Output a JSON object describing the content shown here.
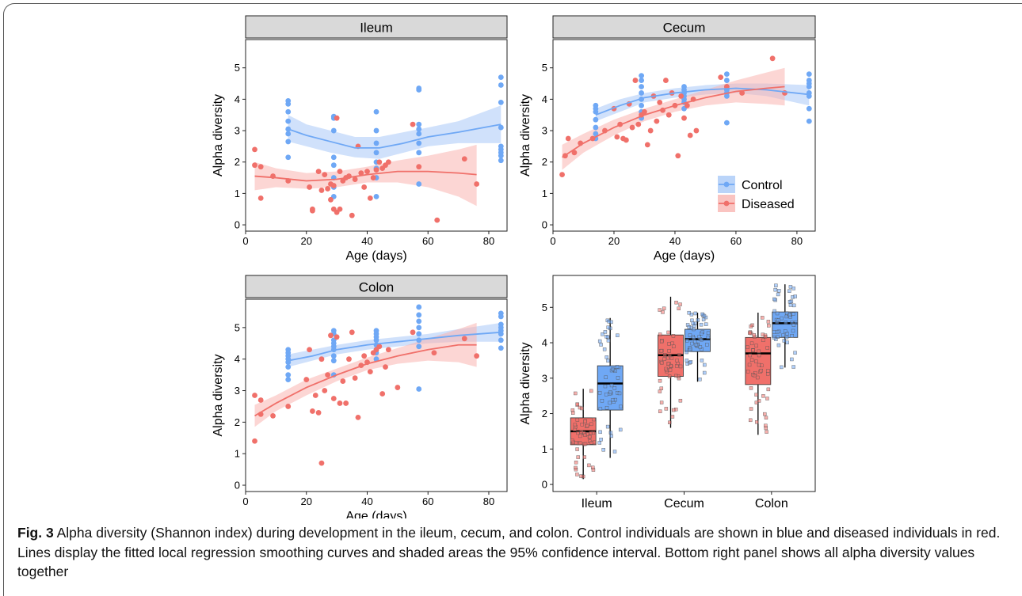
{
  "colors": {
    "control": "#6FA8F5",
    "diseased": "#F0706A",
    "control_fill": "#A9C9F7",
    "diseased_fill": "#F9B5B1",
    "strip": "#D9D9D9"
  },
  "caption": {
    "label": "Fig. 3",
    "text": " Alpha diversity (Shannon index) during development in the ileum, cecum, and colon. Control individuals are shown in blue and diseased individuals in red. Lines display the fitted local regression smoothing curves and shaded areas the 95% confidence interval. Bottom right panel shows all alpha diversity values together"
  },
  "chart_data": [
    {
      "type": "scatter",
      "title": "Ileum",
      "xlabel": "Age (days)",
      "ylabel": "Alpha diversity",
      "xlim": [
        0,
        86
      ],
      "ylim": [
        -0.2,
        5.9
      ],
      "xticks": [
        "0",
        "20",
        "40",
        "60",
        "80"
      ],
      "yticks": [
        "0",
        "1",
        "2",
        "3",
        "4",
        "5"
      ],
      "series": [
        {
          "name": "Control",
          "x": [
            14,
            14,
            14,
            14,
            14,
            14,
            14,
            14,
            29,
            29,
            29,
            29,
            29,
            29,
            29,
            29,
            43,
            43,
            43,
            43,
            43,
            43,
            43,
            43,
            57,
            57,
            57,
            57,
            57,
            57,
            57,
            57,
            84,
            84,
            84,
            84,
            84,
            84,
            84,
            84,
            84
          ],
          "y": [
            3.95,
            3.85,
            3.6,
            3.3,
            3.05,
            2.9,
            2.65,
            2.15,
            3.45,
            3.4,
            3.0,
            2.15,
            1.9,
            1.5,
            1.2,
            0.9,
            3.6,
            3.0,
            2.6,
            2.3,
            2.0,
            1.8,
            1.5,
            0.9,
            4.35,
            4.3,
            3.2,
            3.05,
            2.9,
            2.6,
            2.3,
            1.3,
            4.7,
            4.45,
            3.9,
            3.1,
            2.5,
            2.4,
            2.3,
            2.2,
            2.05
          ],
          "smooth": {
            "x": [
              14,
              20,
              28,
              36,
              44,
              52,
              60,
              70,
              84
            ],
            "y": [
              3.05,
              2.85,
              2.65,
              2.45,
              2.45,
              2.6,
              2.8,
              2.95,
              3.2
            ],
            "lo": [
              2.65,
              2.5,
              2.3,
              2.15,
              2.1,
              2.3,
              2.5,
              2.6,
              2.6
            ],
            "hi": [
              3.5,
              3.2,
              3.0,
              2.8,
              2.8,
              2.95,
              3.1,
              3.3,
              3.8
            ]
          }
        },
        {
          "name": "Diseased",
          "x": [
            3,
            3,
            5,
            5,
            9,
            14,
            21,
            22,
            22,
            24,
            25,
            26,
            27,
            28,
            28,
            29,
            29,
            30,
            30,
            31,
            31,
            32,
            33,
            34,
            35,
            36,
            37,
            38,
            39,
            40,
            41,
            42,
            43,
            44,
            45,
            46,
            47,
            55,
            57,
            63,
            72,
            76
          ],
          "y": [
            2.4,
            1.9,
            1.85,
            0.85,
            1.55,
            1.4,
            1.2,
            0.45,
            0.5,
            1.7,
            1.1,
            1.6,
            1.15,
            1.3,
            0.8,
            0.5,
            1.25,
            3.4,
            0.4,
            1.7,
            0.5,
            1.4,
            1.5,
            1.55,
            0.3,
            1.45,
            2.5,
            1.65,
            1.2,
            1.7,
            0.85,
            1.5,
            1.75,
            2.0,
            1.8,
            1.9,
            2.0,
            3.2,
            1.85,
            0.15,
            2.1,
            1.3
          ],
          "smooth": {
            "x": [
              3,
              10,
              20,
              30,
              40,
              50,
              60,
              70,
              76
            ],
            "y": [
              1.55,
              1.5,
              1.4,
              1.45,
              1.6,
              1.7,
              1.7,
              1.65,
              1.6
            ],
            "lo": [
              1.1,
              1.2,
              1.15,
              1.2,
              1.35,
              1.35,
              1.2,
              0.9,
              0.6
            ],
            "hi": [
              2.0,
              1.8,
              1.65,
              1.7,
              1.85,
              2.05,
              2.2,
              2.4,
              2.55
            ]
          }
        }
      ]
    },
    {
      "type": "scatter",
      "title": "Cecum",
      "xlabel": "Age (days)",
      "ylabel": "Alpha diversity",
      "xlim": [
        0,
        86
      ],
      "ylim": [
        -0.2,
        5.9
      ],
      "xticks": [
        "0",
        "20",
        "40",
        "60",
        "80"
      ],
      "yticks": [
        "0",
        "1",
        "2",
        "3",
        "4",
        "5"
      ],
      "legend": {
        "position": "bottom-right",
        "entries": [
          "Control",
          "Diseased"
        ]
      },
      "series": [
        {
          "name": "Control",
          "x": [
            14,
            14,
            14,
            14,
            14,
            14,
            14,
            29,
            29,
            29,
            29,
            29,
            29,
            29,
            29,
            43,
            43,
            43,
            43,
            43,
            43,
            43,
            57,
            57,
            57,
            57,
            57,
            57,
            57,
            84,
            84,
            84,
            84,
            84,
            84,
            84,
            84
          ],
          "y": [
            3.8,
            3.7,
            3.6,
            3.35,
            3.1,
            2.9,
            2.75,
            4.75,
            4.6,
            4.4,
            4.2,
            4.0,
            3.8,
            3.6,
            3.4,
            4.4,
            4.3,
            4.2,
            4.1,
            4.0,
            3.9,
            3.7,
            4.8,
            4.6,
            4.4,
            4.3,
            4.2,
            4.1,
            3.25,
            4.8,
            4.6,
            4.5,
            4.4,
            4.2,
            4.1,
            3.7,
            3.3
          ],
          "smooth": {
            "x": [
              14,
              22,
              30,
              40,
              50,
              60,
              70,
              84
            ],
            "y": [
              3.5,
              3.8,
              4.05,
              4.2,
              4.3,
              4.35,
              4.3,
              4.15
            ],
            "lo": [
              3.3,
              3.6,
              3.9,
              4.05,
              4.15,
              4.2,
              4.1,
              3.8
            ],
            "hi": [
              3.7,
              4.0,
              4.2,
              4.35,
              4.45,
              4.5,
              4.5,
              4.45
            ]
          }
        },
        {
          "name": "Diseased",
          "x": [
            3,
            4,
            5,
            7,
            9,
            13,
            17,
            20,
            21,
            22,
            23,
            24,
            25,
            26,
            27,
            28,
            29,
            30,
            31,
            32,
            33,
            34,
            35,
            36,
            37,
            38,
            39,
            40,
            41,
            42,
            43,
            44,
            45,
            46,
            47,
            55,
            57,
            62,
            72,
            76
          ],
          "y": [
            1.6,
            2.2,
            2.75,
            2.3,
            2.6,
            2.75,
            3.0,
            3.7,
            2.8,
            3.2,
            2.75,
            2.7,
            3.85,
            3.1,
            4.6,
            3.2,
            3.5,
            3.6,
            2.55,
            3.0,
            4.1,
            3.3,
            3.9,
            3.65,
            4.6,
            3.5,
            4.2,
            3.8,
            2.2,
            4.1,
            3.4,
            3.8,
            2.85,
            4.0,
            3.0,
            4.7,
            4.4,
            4.2,
            5.3,
            4.2
          ],
          "smooth": {
            "x": [
              3,
              10,
              20,
              30,
              40,
              50,
              60,
              70,
              76
            ],
            "y": [
              2.15,
              2.6,
              3.1,
              3.5,
              3.8,
              4.05,
              4.25,
              4.35,
              4.4
            ],
            "lo": [
              1.75,
              2.3,
              2.85,
              3.3,
              3.6,
              3.8,
              3.9,
              3.85,
              3.8
            ],
            "hi": [
              2.55,
              2.9,
              3.35,
              3.7,
              4.0,
              4.3,
              4.6,
              4.85,
              5.0
            ]
          }
        }
      ]
    },
    {
      "type": "scatter",
      "title": "Colon",
      "xlabel": "Age (days)",
      "ylabel": "Alpha diversity",
      "xlim": [
        0,
        86
      ],
      "ylim": [
        -0.2,
        5.9
      ],
      "xticks": [
        "0",
        "20",
        "40",
        "60",
        "80"
      ],
      "yticks": [
        "0",
        "1",
        "2",
        "3",
        "4",
        "5"
      ],
      "series": [
        {
          "name": "Control",
          "x": [
            14,
            14,
            14,
            14,
            14,
            14,
            14,
            14,
            29,
            29,
            29,
            29,
            29,
            29,
            29,
            29,
            29,
            43,
            43,
            43,
            43,
            43,
            43,
            43,
            43,
            57,
            57,
            57,
            57,
            57,
            57,
            57,
            57,
            84,
            84,
            84,
            84,
            84,
            84,
            84,
            84
          ],
          "y": [
            4.3,
            4.2,
            4.1,
            4.0,
            3.9,
            3.75,
            3.5,
            3.35,
            4.9,
            4.8,
            4.6,
            4.5,
            4.4,
            4.3,
            4.1,
            3.95,
            3.5,
            4.9,
            4.8,
            4.7,
            4.6,
            4.45,
            4.3,
            4.2,
            4.0,
            5.65,
            5.4,
            5.2,
            5.0,
            4.8,
            4.6,
            4.4,
            3.05,
            5.45,
            5.35,
            5.1,
            5.0,
            4.9,
            4.8,
            4.6,
            4.35
          ],
          "smooth": {
            "x": [
              14,
              22,
              30,
              40,
              50,
              60,
              70,
              84
            ],
            "y": [
              3.95,
              4.1,
              4.3,
              4.45,
              4.55,
              4.65,
              4.75,
              4.85
            ],
            "lo": [
              3.75,
              3.95,
              4.15,
              4.3,
              4.4,
              4.5,
              4.55,
              4.55
            ],
            "hi": [
              4.15,
              4.3,
              4.45,
              4.6,
              4.7,
              4.8,
              4.95,
              5.15
            ]
          }
        },
        {
          "name": "Diseased",
          "x": [
            3,
            3,
            5,
            5,
            9,
            14,
            20,
            21,
            22,
            23,
            24,
            25,
            25,
            26,
            27,
            28,
            29,
            30,
            31,
            32,
            33,
            34,
            35,
            36,
            37,
            38,
            39,
            40,
            41,
            42,
            43,
            44,
            45,
            46,
            47,
            50,
            55,
            62,
            72,
            76
          ],
          "y": [
            2.85,
            1.4,
            2.7,
            2.25,
            2.2,
            2.5,
            3.35,
            4.3,
            2.35,
            2.85,
            2.3,
            4.0,
            0.7,
            3.0,
            3.5,
            4.75,
            2.75,
            4.7,
            2.6,
            3.3,
            2.6,
            4.0,
            4.85,
            3.4,
            2.15,
            3.8,
            4.1,
            3.9,
            3.6,
            4.2,
            4.3,
            4.4,
            2.9,
            3.75,
            4.3,
            3.1,
            4.85,
            4.2,
            4.65,
            4.1
          ],
          "smooth": {
            "x": [
              3,
              10,
              20,
              30,
              40,
              50,
              60,
              70,
              76
            ],
            "y": [
              2.2,
              2.6,
              3.1,
              3.5,
              3.85,
              4.1,
              4.3,
              4.45,
              4.45
            ],
            "lo": [
              1.85,
              2.35,
              2.85,
              3.3,
              3.65,
              3.85,
              3.95,
              3.9,
              3.75
            ],
            "hi": [
              2.55,
              2.85,
              3.35,
              3.7,
              4.05,
              4.35,
              4.65,
              4.95,
              5.15
            ]
          }
        }
      ]
    },
    {
      "type": "box",
      "title": "",
      "xlabel": "",
      "ylabel": "Alpha diversity",
      "ylim": [
        -0.2,
        5.9
      ],
      "yticks": [
        "0",
        "1",
        "2",
        "3",
        "4",
        "5"
      ],
      "categories": [
        "Ileum",
        "Cecum",
        "Colon"
      ],
      "series": [
        {
          "name": "Diseased",
          "boxes": [
            {
              "min": 0.15,
              "q1": 1.12,
              "median": 1.5,
              "q3": 1.88,
              "max": 2.7
            },
            {
              "min": 1.6,
              "q1": 3.05,
              "median": 3.65,
              "q3": 4.22,
              "max": 5.3
            },
            {
              "min": 1.4,
              "q1": 2.82,
              "median": 3.7,
              "q3": 4.15,
              "max": 4.85
            }
          ]
        },
        {
          "name": "Control",
          "boxes": [
            {
              "min": 0.75,
              "q1": 2.1,
              "median": 2.85,
              "q3": 3.35,
              "max": 4.7
            },
            {
              "min": 2.9,
              "q1": 3.75,
              "median": 4.1,
              "q3": 4.38,
              "max": 4.85
            },
            {
              "min": 3.3,
              "q1": 4.15,
              "median": 4.55,
              "q3": 4.87,
              "max": 5.65
            }
          ]
        }
      ]
    }
  ]
}
